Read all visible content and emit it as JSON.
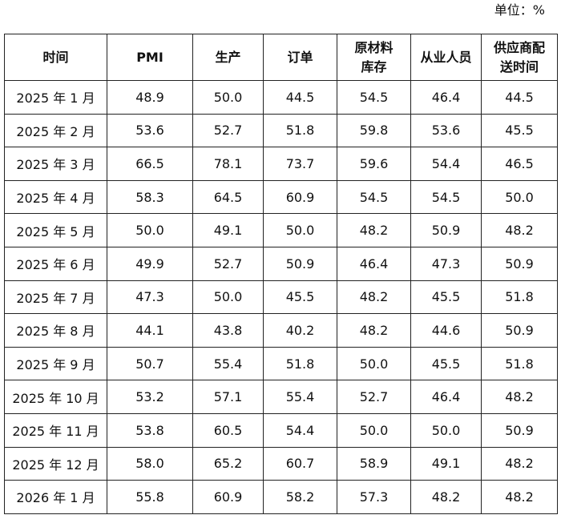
{
  "unit": "单位：%",
  "table": {
    "header": [
      [
        "时间"
      ],
      [
        "PMI"
      ],
      [
        "生产"
      ],
      [
        "订单"
      ],
      [
        "原材料",
        "库存"
      ],
      [
        "从业人员"
      ],
      [
        "供应商配",
        "送时间"
      ]
    ],
    "rows": [
      [
        "2025 年 1 月",
        "48.9",
        "50.0",
        "44.5",
        "54.5",
        "46.4",
        "44.5"
      ],
      [
        "2025 年 2 月",
        "53.6",
        "52.7",
        "51.8",
        "59.8",
        "53.6",
        "45.5"
      ],
      [
        "2025 年 3 月",
        "66.5",
        "78.1",
        "73.7",
        "59.6",
        "54.4",
        "46.5"
      ],
      [
        "2025 年 4 月",
        "58.3",
        "64.5",
        "60.9",
        "54.5",
        "54.5",
        "50.0"
      ],
      [
        "2025 年 5 月",
        "50.0",
        "49.1",
        "50.0",
        "48.2",
        "50.9",
        "48.2"
      ],
      [
        "2025 年 6 月",
        "49.9",
        "52.7",
        "50.9",
        "46.4",
        "47.3",
        "50.9"
      ],
      [
        "2025 年 7 月",
        "47.3",
        "50.0",
        "45.5",
        "48.2",
        "45.5",
        "51.8"
      ],
      [
        "2025 年 8 月",
        "44.1",
        "43.8",
        "40.2",
        "48.2",
        "44.6",
        "50.9"
      ],
      [
        "2025 年 9 月",
        "50.7",
        "55.4",
        "51.8",
        "50.0",
        "45.5",
        "51.8"
      ],
      [
        "2025 年 10 月",
        "53.2",
        "57.1",
        "55.4",
        "52.7",
        "46.4",
        "48.2"
      ],
      [
        "2025 年 11 月",
        "53.8",
        "60.5",
        "54.4",
        "50.0",
        "50.0",
        "50.9"
      ],
      [
        "2025 年 12 月",
        "58.0",
        "65.2",
        "60.7",
        "58.9",
        "49.1",
        "48.2"
      ],
      [
        "2026 年 1 月",
        "55.8",
        "60.9",
        "58.2",
        "57.3",
        "48.2",
        "48.2"
      ]
    ]
  }
}
